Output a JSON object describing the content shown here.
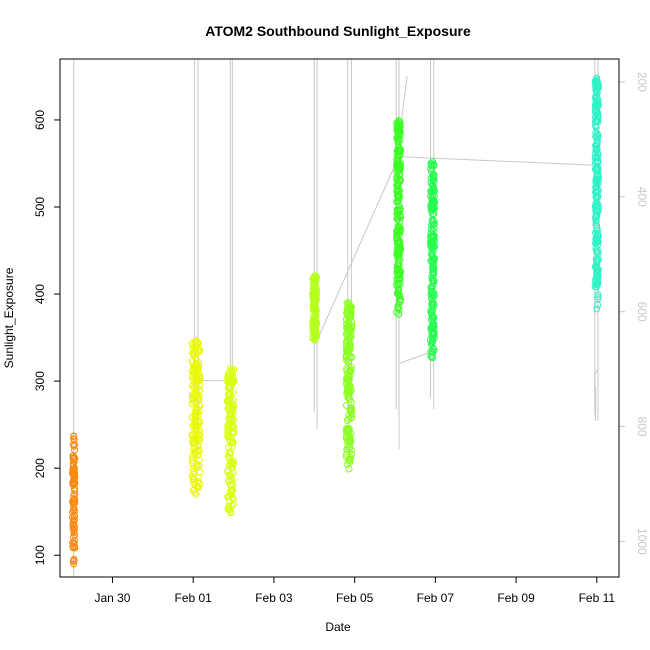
{
  "chart_data": {
    "type": "scatter",
    "title": "ATOM2 Southbound Sunlight_Exposure",
    "xlabel": "Date",
    "ylabel": "Sunlight_Exposure",
    "x_ticks": [
      "Jan 30",
      "Feb 01",
      "Feb 03",
      "Feb 05",
      "Feb 07",
      "Feb 09",
      "Feb 11"
    ],
    "x_tick_days": [
      -2,
      0,
      2,
      4,
      6,
      8,
      10
    ],
    "xlim_days": [
      -3.3,
      10.55
    ],
    "y_ticks": [
      100,
      200,
      300,
      400,
      500,
      600
    ],
    "ylim": [
      75,
      670
    ],
    "y2_ticks": [
      200,
      400,
      600,
      800,
      1000
    ],
    "y2lim": [
      1062,
      160
    ],
    "grid": false,
    "marker": "open-circle",
    "clusters": [
      {
        "day": -2.96,
        "spread": 0.03,
        "ymin": 90,
        "ymax": 237,
        "n": 90,
        "color": "#f98a0e"
      },
      {
        "day": 0.07,
        "spread": 0.1,
        "ymin": 170,
        "ymax": 347,
        "n": 170,
        "color": "#eaf80a"
      },
      {
        "day": 0.93,
        "spread": 0.08,
        "ymin": 149,
        "ymax": 315,
        "n": 150,
        "color": "#dbff12"
      },
      {
        "day": 3.01,
        "spread": 0.05,
        "ymin": 347,
        "ymax": 421,
        "n": 120,
        "color": "#b6ff1c"
      },
      {
        "day": 3.86,
        "spread": 0.07,
        "ymin": 199,
        "ymax": 390,
        "n": 170,
        "color": "#8bff20"
      },
      {
        "day": 5.09,
        "spread": 0.05,
        "ymin": 377,
        "ymax": 599,
        "n": 200,
        "color": "#3bff22"
      },
      {
        "day": 5.93,
        "spread": 0.05,
        "ymin": 327,
        "ymax": 552,
        "n": 180,
        "color": "#25fd4f"
      },
      {
        "day": 9.99,
        "spread": 0.015,
        "ymin": 420,
        "ymax": 527,
        "n": 30,
        "color": "#2cf7bb"
      },
      {
        "day": 10.0,
        "spread": 0.04,
        "ymin": 383,
        "ymax": 648,
        "n": 190,
        "color": "#2ff2c8"
      }
    ],
    "depth_track": {
      "color": "#c8c8c8",
      "axis": "right",
      "spikes": [
        {
          "day": -2.96,
          "from": 1062,
          "to": 160
        },
        {
          "day": 0.03,
          "from": 812,
          "to": 160
        },
        {
          "day": 0.12,
          "from": 836,
          "to": 160
        },
        {
          "day": 0.92,
          "from": 760,
          "to": 160
        },
        {
          "day": 0.97,
          "from": 785,
          "to": 160
        },
        {
          "day": 3.0,
          "from": 775,
          "to": 160
        },
        {
          "day": 3.07,
          "from": 805,
          "to": 160
        },
        {
          "day": 3.83,
          "from": 770,
          "to": 160
        },
        {
          "day": 3.92,
          "from": 785,
          "to": 160
        },
        {
          "day": 5.03,
          "from": 770,
          "to": 160
        },
        {
          "day": 5.1,
          "from": 840,
          "to": 160
        },
        {
          "day": 5.88,
          "from": 750,
          "to": 160
        },
        {
          "day": 5.96,
          "from": 770,
          "to": 160
        },
        {
          "day": 9.97,
          "from": 790,
          "to": 730
        },
        {
          "day": 9.95,
          "from": 730,
          "to": 710
        },
        {
          "day": 9.95,
          "from": 780,
          "to": 160
        },
        {
          "day": 10.03,
          "from": 790,
          "to": 160
        }
      ],
      "links": [
        [
          [
            0.12,
            720
          ],
          [
            0.92,
            720
          ]
        ],
        [
          [
            3.07,
            650
          ],
          [
            5.03,
            340
          ],
          [
            5.3,
            190
          ]
        ],
        [
          [
            5.1,
            690
          ],
          [
            5.9,
            670
          ]
        ],
        [
          [
            5.1,
            330
          ],
          [
            9.95,
            345
          ]
        ],
        [
          [
            9.95,
            710
          ],
          [
            10.03,
            700
          ]
        ]
      ]
    }
  }
}
